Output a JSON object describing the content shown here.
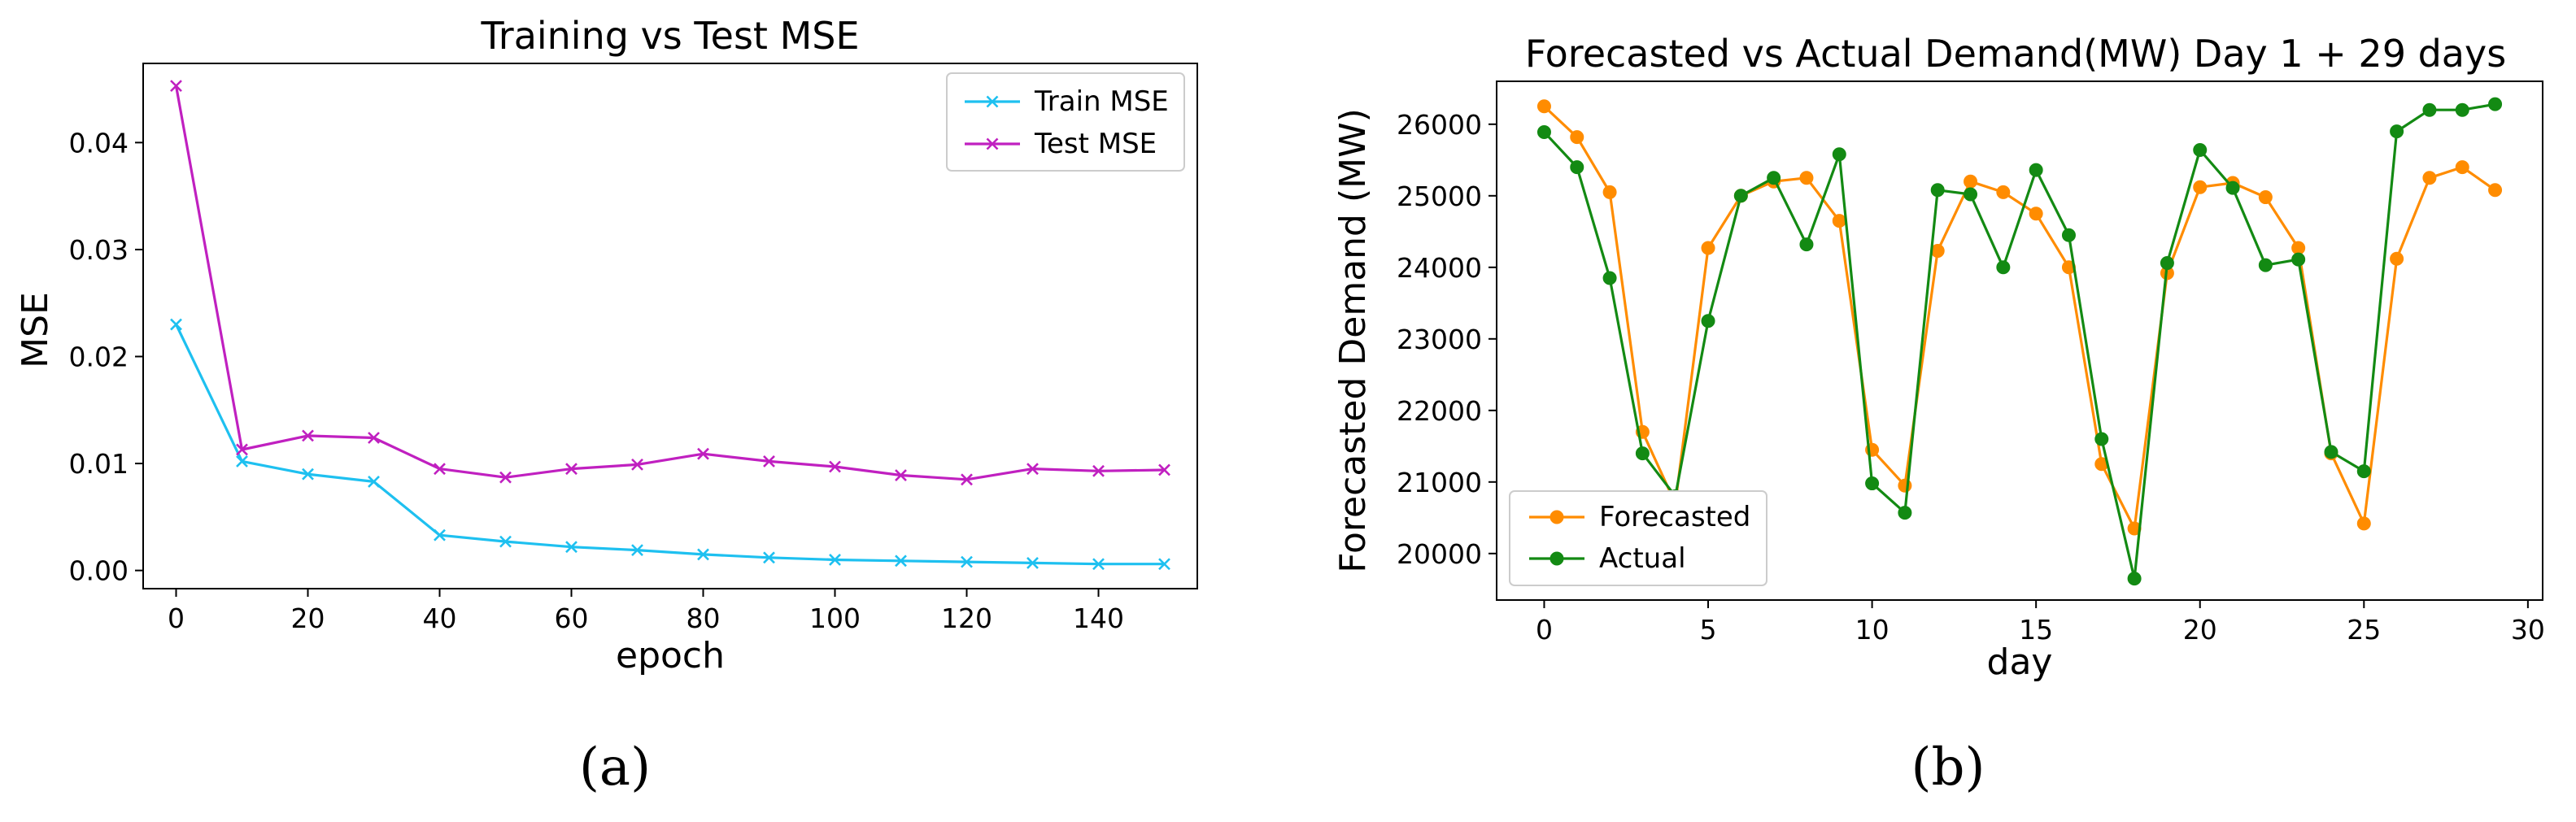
{
  "chart_data": [
    {
      "type": "line",
      "title": "Training vs Test MSE",
      "xlabel": "epoch",
      "ylabel": "MSE",
      "xlim": [
        -5,
        155
      ],
      "ylim": [
        -0.0017,
        0.0474
      ],
      "xticks": [
        0,
        20,
        40,
        60,
        80,
        100,
        120,
        140
      ],
      "xtick_labels": [
        "0",
        "20",
        "40",
        "60",
        "80",
        "100",
        "120",
        "140"
      ],
      "yticks": [
        0.0,
        0.01,
        0.02,
        0.03,
        0.04
      ],
      "ytick_labels": [
        "0.00",
        "0.01",
        "0.02",
        "0.03",
        "0.04"
      ],
      "grid": false,
      "legend_position": "top-right",
      "x": [
        0,
        10,
        20,
        30,
        40,
        50,
        60,
        70,
        80,
        90,
        100,
        110,
        120,
        130,
        140,
        150
      ],
      "series": [
        {
          "name": "Train MSE",
          "color": "#1ec0f0",
          "marker": "x",
          "values": [
            0.023,
            0.0102,
            0.009,
            0.0083,
            0.0033,
            0.0027,
            0.0022,
            0.0019,
            0.0015,
            0.0012,
            0.001,
            0.0009,
            0.0008,
            0.0007,
            0.0006,
            0.0006
          ]
        },
        {
          "name": "Test MSE",
          "color": "#c020c0",
          "marker": "x",
          "values": [
            0.0453,
            0.0113,
            0.0126,
            0.0124,
            0.0095,
            0.0087,
            0.0095,
            0.0099,
            0.0109,
            0.0102,
            0.0097,
            0.0089,
            0.0085,
            0.0095,
            0.0093,
            0.0094
          ]
        }
      ]
    },
    {
      "type": "line",
      "title": "Forecasted vs Actual Demand(MW) Day 1 + 29 days",
      "xlabel": "day",
      "ylabel": "Forecasted Demand (MW)",
      "xlim": [
        -1.45,
        30.45
      ],
      "ylim": [
        19350,
        26600
      ],
      "xticks": [
        0,
        5,
        10,
        15,
        20,
        25,
        30
      ],
      "xtick_labels": [
        "0",
        "5",
        "10",
        "15",
        "20",
        "25",
        "30"
      ],
      "yticks": [
        20000,
        21000,
        22000,
        23000,
        24000,
        25000,
        26000
      ],
      "ytick_labels": [
        "20000",
        "21000",
        "22000",
        "23000",
        "24000",
        "25000",
        "26000"
      ],
      "grid": false,
      "legend_position": "bottom-left",
      "x": [
        0,
        1,
        2,
        3,
        4,
        5,
        6,
        7,
        8,
        9,
        10,
        11,
        12,
        13,
        14,
        15,
        16,
        17,
        18,
        19,
        20,
        21,
        22,
        23,
        24,
        25,
        26,
        27,
        28,
        29
      ],
      "series": [
        {
          "name": "Forecasted",
          "color": "#ff8c00",
          "marker": "o",
          "values": [
            26250,
            25820,
            25050,
            21700,
            20700,
            24270,
            25000,
            25200,
            25250,
            24650,
            21450,
            20950,
            24230,
            25200,
            25050,
            24750,
            24000,
            21250,
            20350,
            23920,
            25120,
            25180,
            24980,
            24270,
            21400,
            20420,
            24120,
            25250,
            25400,
            25080
          ]
        },
        {
          "name": "Actual",
          "color": "#138a13",
          "marker": "o",
          "values": [
            25890,
            25400,
            23850,
            21400,
            20800,
            23250,
            25000,
            25250,
            24320,
            25580,
            20980,
            20570,
            25080,
            25020,
            24000,
            25360,
            24450,
            21600,
            19650,
            24060,
            25640,
            25110,
            24030,
            24110,
            21420,
            21150,
            25900,
            26200,
            26200,
            26280
          ]
        }
      ]
    }
  ],
  "captions": [
    "(a)",
    "(b)"
  ]
}
